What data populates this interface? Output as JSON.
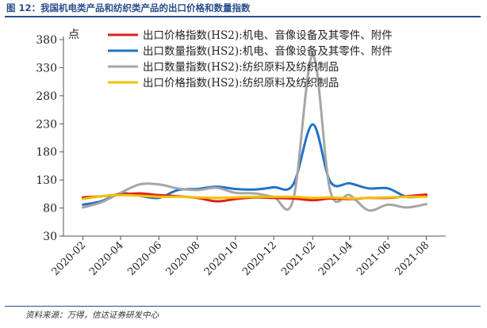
{
  "figure": {
    "title": "图 12：我国机电类产品和纺织类产品的出口价格和数量指数",
    "source": "资料来源：万得，信达证券研发中心",
    "unit": "点"
  },
  "colors": {
    "title": "#2a4e8b",
    "axis": "#555555",
    "series": [
      "#e01f1f",
      "#2173c6",
      "#a6a6a6",
      "#f2c200"
    ]
  },
  "chart_data": {
    "type": "line",
    "title": "",
    "xlabel": "",
    "ylabel": "点",
    "ylim": [
      30,
      380
    ],
    "yticks": [
      30,
      80,
      130,
      180,
      230,
      280,
      330,
      380
    ],
    "xlim": [
      "2020-01-15",
      "2021-09-15"
    ],
    "xtick_labels": [
      "2020-02",
      "2020-04",
      "2020-06",
      "2020-08",
      "2020-10",
      "2020-12",
      "2021-02",
      "2021-04",
      "2021-06",
      "2021-08"
    ],
    "x": [
      "2020-02",
      "2020-03",
      "2020-04",
      "2020-05",
      "2020-06",
      "2020-07",
      "2020-08",
      "2020-09",
      "2020-10",
      "2020-11",
      "2020-12",
      "2021-01",
      "2021-02",
      "2021-03",
      "2021-04",
      "2021-05",
      "2021-06",
      "2021-07",
      "2021-08"
    ],
    "legend_position": "top-right",
    "grid": false,
    "series": [
      {
        "name": "出口价格指数(HS2):机电、音像设备及其零件、附件",
        "values": [
          99,
          101,
          104,
          106,
          103,
          101,
          98,
          92,
          96,
          99,
          98,
          97,
          94,
          97,
          96,
          98,
          98,
          101,
          104
        ]
      },
      {
        "name": "出口数量指数(HS2):机电、音像设备及其零件、附件",
        "values": [
          86,
          92,
          106,
          102,
          98,
          112,
          114,
          118,
          114,
          113,
          117,
          122,
          229,
          127,
          124,
          115,
          115,
          100,
          102
        ]
      },
      {
        "name": "出口数量指数(HS2):纺织原料及纺织制品",
        "values": [
          81,
          90,
          107,
          122,
          122,
          115,
          112,
          116,
          107,
          106,
          100,
          95,
          352,
          110,
          103,
          76,
          86,
          81,
          87
        ]
      },
      {
        "name": "出口价格指数(HS2):纺织原料及纺织制品",
        "values": [
          96,
          101,
          103,
          102,
          100,
          100,
          99,
          98,
          99,
          100,
          100,
          100,
          98,
          99,
          97,
          98,
          99,
          100,
          100
        ]
      }
    ]
  }
}
